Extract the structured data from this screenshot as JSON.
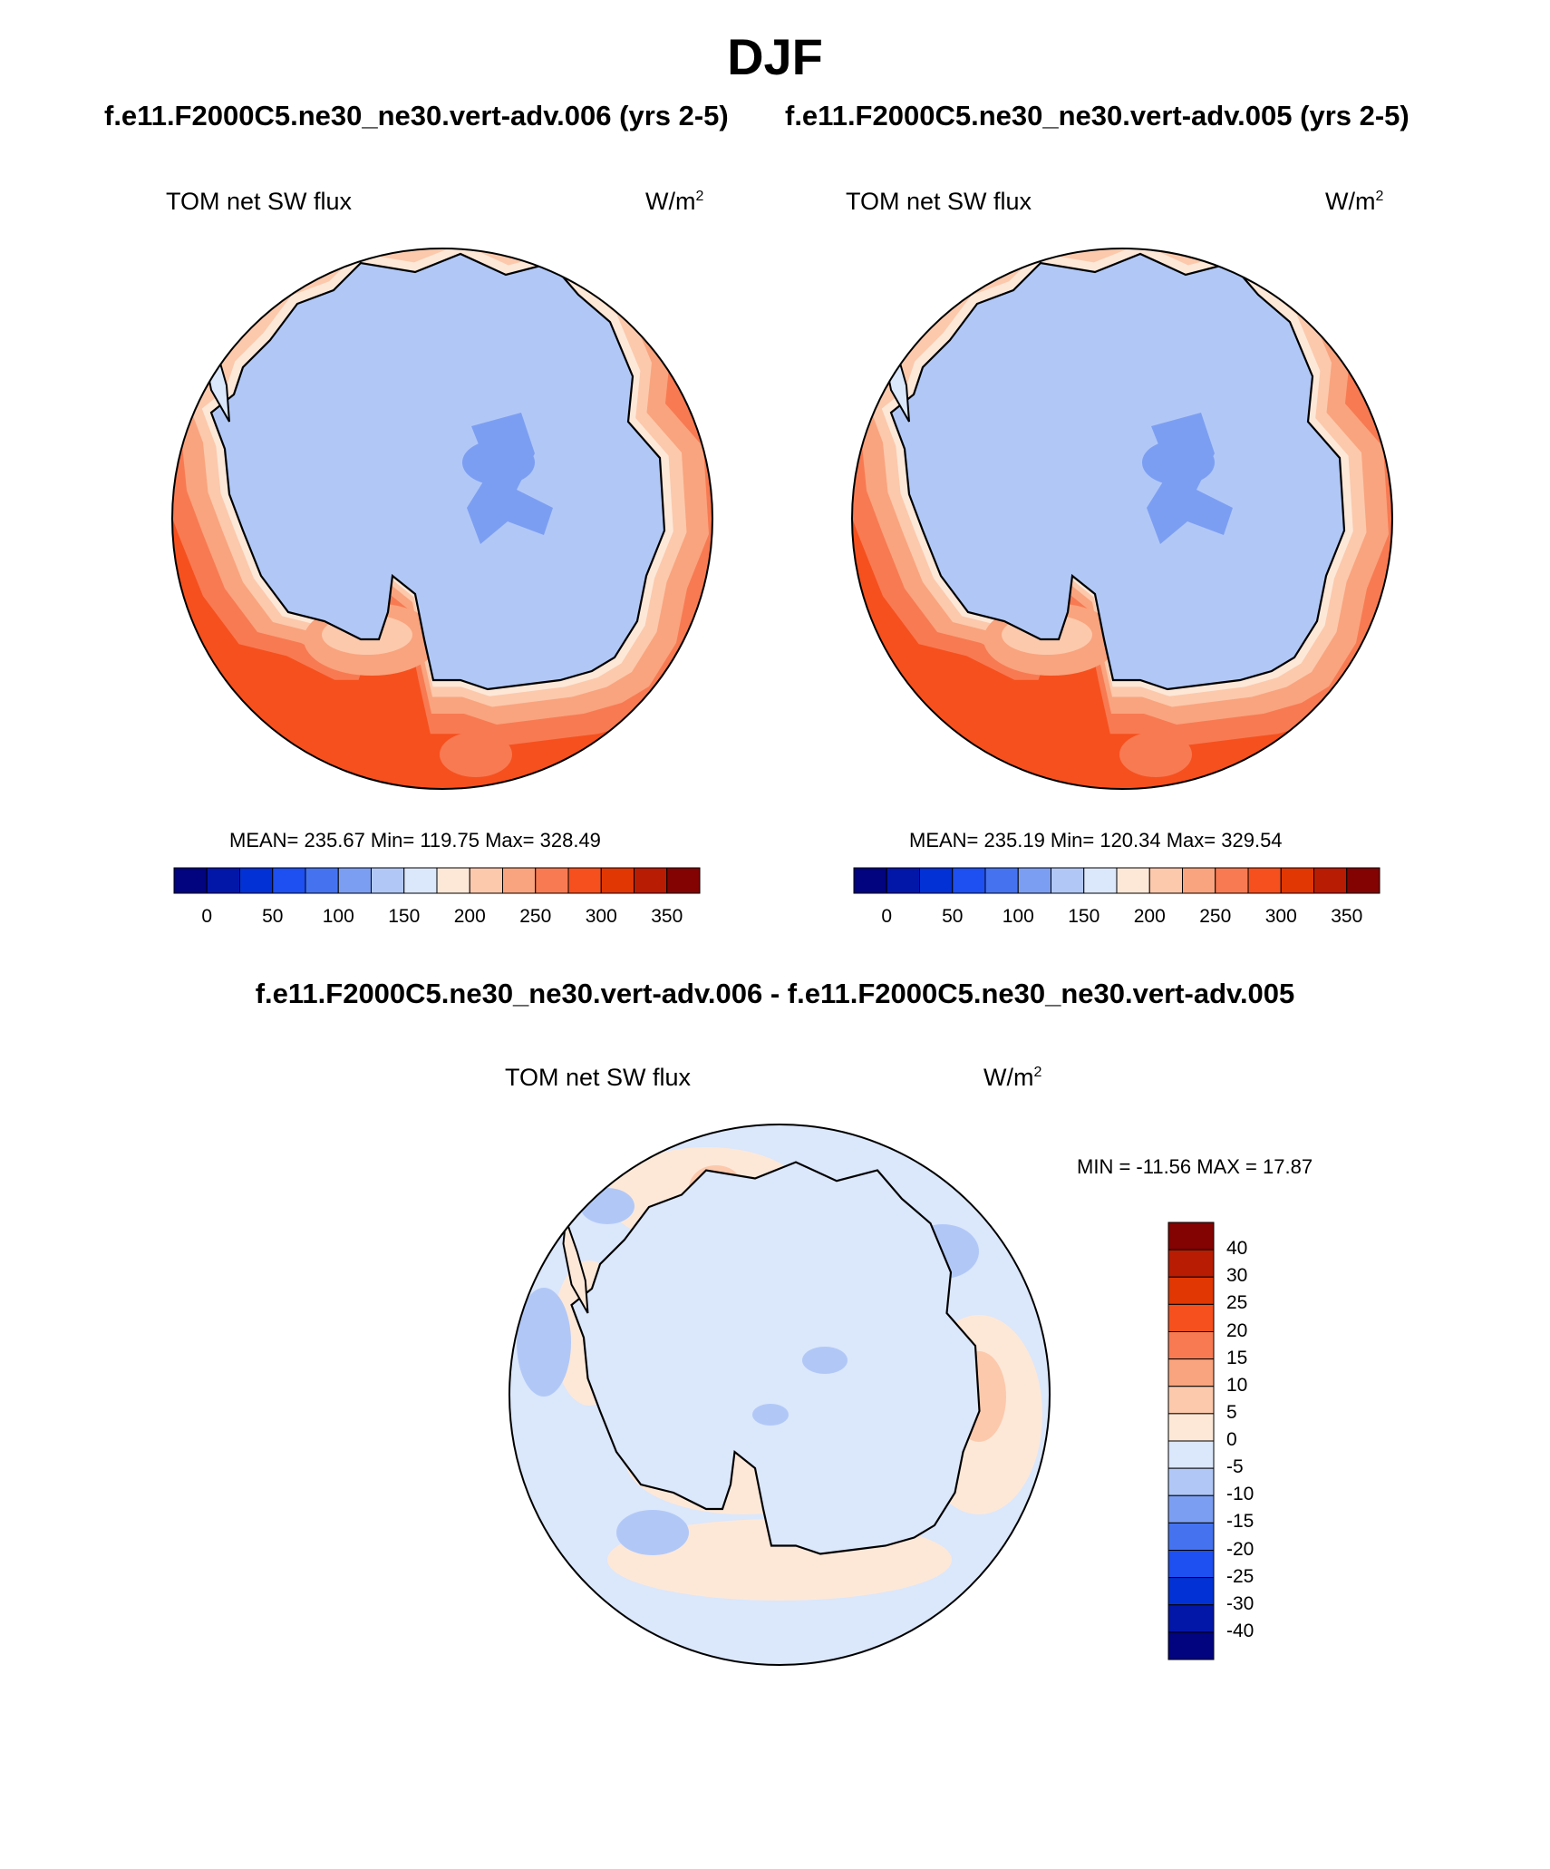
{
  "title": "DJF",
  "palette": [
    "#02037f",
    "#0217a8",
    "#0232d5",
    "#1e4ff0",
    "#4573f0",
    "#7c9ef2",
    "#b1c8f7",
    "#dbe7fb",
    "#fde8d8",
    "#fcc9ac",
    "#f9a47e",
    "#f87a52",
    "#f6501e",
    "#e03703",
    "#b81c03",
    "#830302"
  ],
  "panels": [
    {
      "case_title": "f.e11.F2000C5.ne30_ne30.vert-adv.006 (yrs 2-5)",
      "variable": "TOM net SW flux",
      "units": "W/m",
      "units_exp": "2",
      "stats": "MEAN= 235.67  Min= 119.75  Max= 328.49",
      "colorbar_labels": [
        "0",
        "50",
        "100",
        "150",
        "200",
        "250",
        "300",
        "350"
      ]
    },
    {
      "case_title": "f.e11.F2000C5.ne30_ne30.vert-adv.005 (yrs 2-5)",
      "variable": "TOM net SW flux",
      "units": "W/m",
      "units_exp": "2",
      "stats": "MEAN= 235.19  Min= 120.34  Max= 329.54",
      "colorbar_labels": [
        "0",
        "50",
        "100",
        "150",
        "200",
        "250",
        "300",
        "350"
      ]
    }
  ],
  "difference": {
    "title": "f.e11.F2000C5.ne30_ne30.vert-adv.006 - f.e11.F2000C5.ne30_ne30.vert-adv.005",
    "variable": "TOM net SW flux",
    "units": "W/m",
    "units_exp": "2",
    "stats": "MIN = -11.56 MAX =  17.87",
    "colorbar_labels": [
      "40",
      "30",
      "25",
      "20",
      "15",
      "10",
      "5",
      "0",
      "-5",
      "-10",
      "-15",
      "-20",
      "-25",
      "-30",
      "-40"
    ]
  }
}
